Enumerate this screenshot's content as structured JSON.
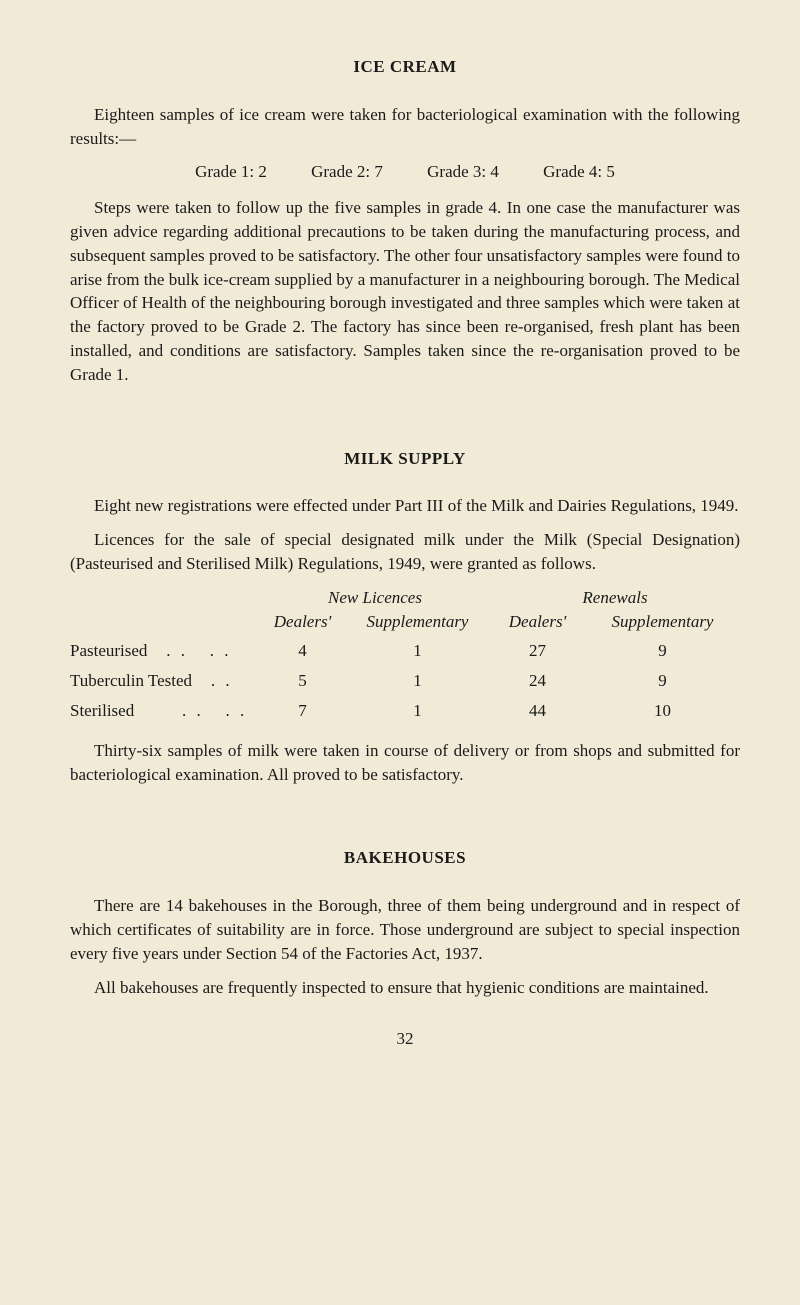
{
  "page": {
    "background_color": "#f0ead6",
    "text_color": "#1a1a1a",
    "font_family": "Georgia, 'Times New Roman', serif",
    "base_fontsize": 17,
    "page_number": "32"
  },
  "ice_cream": {
    "title": "ICE CREAM",
    "para1": "Eighteen samples of ice cream were taken for bacteriological examination with the following results:—",
    "grades": {
      "g1": "Grade 1: 2",
      "g2": "Grade 2: 7",
      "g3": "Grade 3: 4",
      "g4": "Grade 4: 5"
    },
    "para2": "Steps were taken to follow up the five samples in grade 4. In one case the manufacturer was given advice regarding additional precautions to be taken during the manufacturing process, and subsequent samples proved to be satisfactory. The other four unsatisfactory samples were found to arise from the bulk ice-cream supplied by a manufacturer in a neighbouring borough. The Medical Officer of Health of the neighbouring borough investigated and three samples which were taken at the factory proved to be Grade 2. The factory has since been re-organised, fresh plant has been installed, and conditions are satisfactory. Samples taken since the re-organisation proved to be Grade 1."
  },
  "milk_supply": {
    "title": "MILK SUPPLY",
    "para1": "Eight new registrations were effected under Part III of the Milk and Dairies Regulations, 1949.",
    "para2": "Licences for the sale of special designated milk under the Milk (Special Designation) (Pasteurised and Sterilised Milk) Regulations, 1949, were granted as follows.",
    "licence_table": {
      "header_top": {
        "new": "New Licences",
        "renewals": "Renewals"
      },
      "header_sub": {
        "dealers_new": "Dealers'",
        "supp_new": "Supplementary",
        "dealers_ren": "Dealers'",
        "supp_ren": "Supplementary"
      },
      "rows": [
        {
          "label": "Pasteurised",
          "dots": ". .",
          "dealers_new": "4",
          "supp_new": "1",
          "dealers_ren": "27",
          "supp_ren": "9"
        },
        {
          "label": "Tuberculin Tested",
          "dots": ". .",
          "dealers_new": "5",
          "supp_new": "1",
          "dealers_ren": "24",
          "supp_ren": "9"
        },
        {
          "label": "Sterilised",
          "dots": ". .",
          "dealers_new": "7",
          "supp_new": "1",
          "dealers_ren": "44",
          "supp_ren": "10"
        }
      ]
    },
    "para3": "Thirty-six samples of milk were taken in course of delivery or from shops and submitted for bacteriological examination. All proved to be satisfactory."
  },
  "bakehouses": {
    "title": "BAKEHOUSES",
    "para1": "There are 14 bakehouses in the Borough, three of them being underground and in respect of which certificates of suitability are in force. Those underground are subject to special inspection every five years under Section 54 of the Factories Act, 1937.",
    "para2": "All bakehouses are frequently inspected to ensure that hygienic conditions are maintained."
  }
}
